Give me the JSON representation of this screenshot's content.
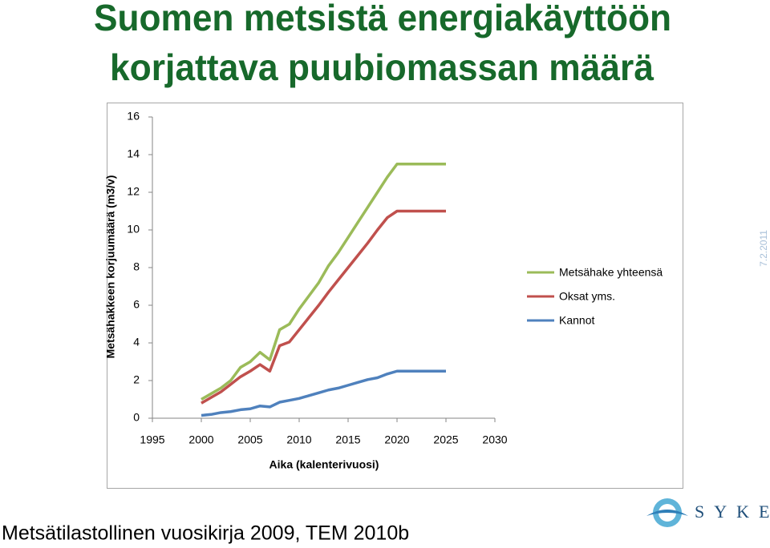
{
  "chart_data": {
    "type": "line",
    "title": [
      "Suomen metsistä energiakäyttöön",
      "korjattava puubiomassan määrä"
    ],
    "xlabel": "Aika (kalenterivuosi)",
    "ylabel": "Metsähakkeen korjuumäärä (m3/v)",
    "x": [
      2000,
      2001,
      2002,
      2003,
      2004,
      2005,
      2006,
      2007,
      2008,
      2009,
      2010,
      2011,
      2012,
      2013,
      2014,
      2015,
      2016,
      2017,
      2018,
      2019,
      2020,
      2021,
      2022,
      2023,
      2024,
      2025
    ],
    "series": [
      {
        "name": "Metsähake yhteensä",
        "color": "#9bbb59",
        "values": [
          1.0,
          1.3,
          1.6,
          2.0,
          2.7,
          3.0,
          3.5,
          3.1,
          4.7,
          5.0,
          5.8,
          6.5,
          7.2,
          8.1,
          8.8,
          9.6,
          10.4,
          11.2,
          12.0,
          12.8,
          13.5,
          13.5,
          13.5,
          13.5,
          13.5,
          13.5
        ]
      },
      {
        "name": "Oksat yms.",
        "color": "#c0504d",
        "values": [
          0.8,
          1.1,
          1.4,
          1.8,
          2.2,
          2.5,
          2.85,
          2.5,
          3.85,
          4.05,
          4.7,
          5.35,
          6.0,
          6.7,
          7.35,
          8.0,
          8.65,
          9.3,
          10.0,
          10.65,
          11.0,
          11.0,
          11.0,
          11.0,
          11.0,
          11.0
        ]
      },
      {
        "name": "Kannot",
        "color": "#4f81bd",
        "values": [
          0.15,
          0.2,
          0.3,
          0.35,
          0.45,
          0.5,
          0.65,
          0.6,
          0.85,
          0.95,
          1.05,
          1.2,
          1.35,
          1.5,
          1.6,
          1.75,
          1.9,
          2.05,
          2.15,
          2.35,
          2.5,
          2.5,
          2.5,
          2.5,
          2.5,
          2.5
        ]
      }
    ],
    "xlim": [
      1995,
      2030
    ],
    "xticks": [
      1995,
      2000,
      2005,
      2010,
      2015,
      2020,
      2025,
      2030
    ],
    "ylim": [
      0,
      16
    ],
    "yticks": [
      0,
      2,
      4,
      6,
      8,
      10,
      12,
      14,
      16
    ],
    "grid": false,
    "legend": "right"
  },
  "date": "7.2.2011",
  "source": "Metsätilastollinen vuosikirja 2009, TEM 2010b",
  "logo": "SYKE"
}
